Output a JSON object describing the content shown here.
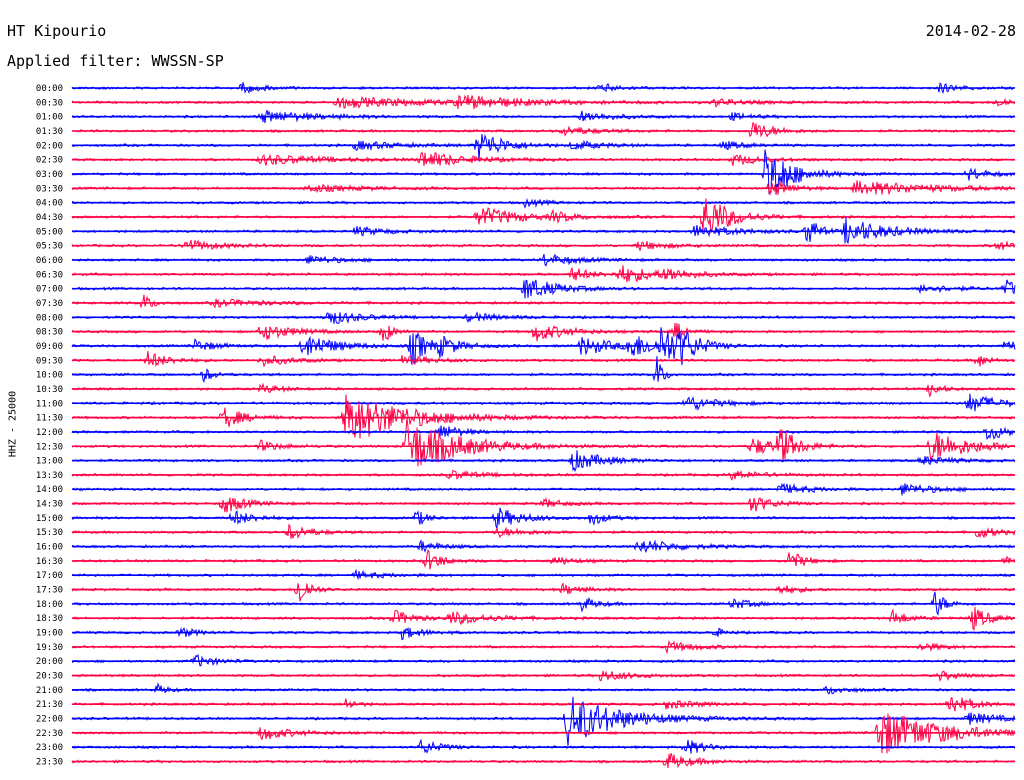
{
  "header": {
    "station": "HT Kipourio",
    "date": "2014-02-28",
    "filter": "Applied filter: WWSSN-SP"
  },
  "chart_data": {
    "type": "line",
    "chart_kind": "helicorder",
    "ylabel": "HHZ - 25000",
    "colors": [
      "#0000ff",
      "#ff0044"
    ],
    "rows": [
      {
        "time": "00:00",
        "events": [
          {
            "x": 0.18,
            "a": 0.6,
            "d": 0.02
          },
          {
            "x": 0.56,
            "a": 0.5,
            "d": 0.02
          },
          {
            "x": 0.92,
            "a": 0.5,
            "d": 0.02
          }
        ]
      },
      {
        "time": "00:30",
        "events": [
          {
            "x": 0.28,
            "a": 0.6,
            "d": 0.1
          },
          {
            "x": 0.41,
            "a": 0.7,
            "d": 0.06
          },
          {
            "x": 0.68,
            "a": 0.4,
            "d": 0.03
          },
          {
            "x": 0.98,
            "a": 0.5,
            "d": 0.02
          }
        ]
      },
      {
        "time": "01:00",
        "events": [
          {
            "x": 0.2,
            "a": 0.7,
            "d": 0.05
          },
          {
            "x": 0.54,
            "a": 0.6,
            "d": 0.03
          },
          {
            "x": 0.7,
            "a": 0.4,
            "d": 0.02
          }
        ]
      },
      {
        "time": "01:30",
        "events": [
          {
            "x": 0.52,
            "a": 0.5,
            "d": 0.03
          },
          {
            "x": 0.72,
            "a": 1.2,
            "d": 0.02
          }
        ]
      },
      {
        "time": "02:00",
        "events": [
          {
            "x": 0.3,
            "a": 0.5,
            "d": 0.04
          },
          {
            "x": 0.43,
            "a": 1.8,
            "d": 0.025
          },
          {
            "x": 0.53,
            "a": 0.5,
            "d": 0.03
          },
          {
            "x": 0.69,
            "a": 0.5,
            "d": 0.02
          }
        ]
      },
      {
        "time": "02:30",
        "events": [
          {
            "x": 0.2,
            "a": 0.6,
            "d": 0.06
          },
          {
            "x": 0.37,
            "a": 1.0,
            "d": 0.04
          },
          {
            "x": 0.7,
            "a": 0.6,
            "d": 0.03
          }
        ]
      },
      {
        "time": "03:00",
        "events": [
          {
            "x": 0.735,
            "a": 3.0,
            "d": 0.012
          },
          {
            "x": 0.745,
            "a": 1.6,
            "d": 0.03
          },
          {
            "x": 0.95,
            "a": 0.7,
            "d": 0.02
          }
        ]
      },
      {
        "time": "03:30",
        "events": [
          {
            "x": 0.74,
            "a": 1.0,
            "d": 0.02
          },
          {
            "x": 0.83,
            "a": 0.8,
            "d": 0.08
          },
          {
            "x": 0.25,
            "a": 0.4,
            "d": 0.05
          }
        ]
      },
      {
        "time": "04:00",
        "events": [
          {
            "x": 0.48,
            "a": 0.4,
            "d": 0.02
          }
        ]
      },
      {
        "time": "04:30",
        "events": [
          {
            "x": 0.43,
            "a": 1.2,
            "d": 0.04
          },
          {
            "x": 0.67,
            "a": 2.8,
            "d": 0.025
          },
          {
            "x": 0.51,
            "a": 0.5,
            "d": 0.02
          }
        ]
      },
      {
        "time": "05:00",
        "events": [
          {
            "x": 0.66,
            "a": 0.7,
            "d": 0.04
          },
          {
            "x": 0.78,
            "a": 2.0,
            "d": 0.01
          },
          {
            "x": 0.82,
            "a": 1.5,
            "d": 0.04
          },
          {
            "x": 0.3,
            "a": 0.5,
            "d": 0.03
          }
        ]
      },
      {
        "time": "05:30",
        "events": [
          {
            "x": 0.12,
            "a": 0.7,
            "d": 0.03
          },
          {
            "x": 0.6,
            "a": 0.5,
            "d": 0.03
          },
          {
            "x": 0.98,
            "a": 0.5,
            "d": 0.02
          }
        ]
      },
      {
        "time": "06:00",
        "events": [
          {
            "x": 0.25,
            "a": 0.5,
            "d": 0.03
          },
          {
            "x": 0.5,
            "a": 0.7,
            "d": 0.03
          }
        ]
      },
      {
        "time": "06:30",
        "events": [
          {
            "x": 0.53,
            "a": 0.8,
            "d": 0.02
          },
          {
            "x": 0.58,
            "a": 1.0,
            "d": 0.04
          },
          {
            "x": 0.63,
            "a": 0.6,
            "d": 0.02
          }
        ]
      },
      {
        "time": "07:00",
        "events": [
          {
            "x": 0.48,
            "a": 1.4,
            "d": 0.03
          },
          {
            "x": 0.9,
            "a": 0.5,
            "d": 0.03
          },
          {
            "x": 0.99,
            "a": 0.9,
            "d": 0.02
          }
        ]
      },
      {
        "time": "07:30",
        "events": [
          {
            "x": 0.075,
            "a": 1.0,
            "d": 0.01
          },
          {
            "x": 0.15,
            "a": 0.4,
            "d": 0.05
          }
        ]
      },
      {
        "time": "08:00",
        "events": [
          {
            "x": 0.27,
            "a": 0.9,
            "d": 0.03
          },
          {
            "x": 0.42,
            "a": 0.5,
            "d": 0.03
          }
        ]
      },
      {
        "time": "08:30",
        "events": [
          {
            "x": 0.2,
            "a": 1.0,
            "d": 0.03
          },
          {
            "x": 0.33,
            "a": 1.5,
            "d": 0.008
          },
          {
            "x": 0.49,
            "a": 1.1,
            "d": 0.03
          },
          {
            "x": 0.64,
            "a": 1.2,
            "d": 0.01
          }
        ]
      },
      {
        "time": "09:00",
        "events": [
          {
            "x": 0.13,
            "a": 0.7,
            "d": 0.02
          },
          {
            "x": 0.245,
            "a": 1.5,
            "d": 0.03
          },
          {
            "x": 0.36,
            "a": 2.3,
            "d": 0.015
          },
          {
            "x": 0.39,
            "a": 1.0,
            "d": 0.02
          },
          {
            "x": 0.54,
            "a": 1.1,
            "d": 0.03
          },
          {
            "x": 0.59,
            "a": 1.4,
            "d": 0.03
          },
          {
            "x": 0.625,
            "a": 2.5,
            "d": 0.015
          },
          {
            "x": 0.645,
            "a": 1.5,
            "d": 0.02
          },
          {
            "x": 0.99,
            "a": 0.9,
            "d": 0.01
          }
        ]
      },
      {
        "time": "09:30",
        "events": [
          {
            "x": 0.08,
            "a": 1.0,
            "d": 0.02
          },
          {
            "x": 0.2,
            "a": 0.6,
            "d": 0.03
          },
          {
            "x": 0.35,
            "a": 0.5,
            "d": 0.03
          },
          {
            "x": 0.96,
            "a": 0.9,
            "d": 0.01
          }
        ]
      },
      {
        "time": "10:00",
        "events": [
          {
            "x": 0.14,
            "a": 0.8,
            "d": 0.01
          },
          {
            "x": 0.62,
            "a": 2.2,
            "d": 0.006
          }
        ]
      },
      {
        "time": "10:30",
        "events": [
          {
            "x": 0.2,
            "a": 0.5,
            "d": 0.02
          },
          {
            "x": 0.91,
            "a": 1.0,
            "d": 0.01
          }
        ]
      },
      {
        "time": "11:00",
        "events": [
          {
            "x": 0.65,
            "a": 0.9,
            "d": 0.03
          },
          {
            "x": 0.95,
            "a": 1.1,
            "d": 0.03
          }
        ]
      },
      {
        "time": "11:30",
        "events": [
          {
            "x": 0.16,
            "a": 1.3,
            "d": 0.02
          },
          {
            "x": 0.29,
            "a": 3.0,
            "d": 0.06
          }
        ]
      },
      {
        "time": "12:00",
        "events": [
          {
            "x": 0.39,
            "a": 0.9,
            "d": 0.02
          },
          {
            "x": 0.97,
            "a": 1.0,
            "d": 0.02
          }
        ]
      },
      {
        "time": "12:30",
        "events": [
          {
            "x": 0.355,
            "a": 3.2,
            "d": 0.05
          },
          {
            "x": 0.2,
            "a": 0.6,
            "d": 0.02
          },
          {
            "x": 0.72,
            "a": 1.0,
            "d": 0.03
          },
          {
            "x": 0.75,
            "a": 2.2,
            "d": 0.015
          },
          {
            "x": 0.91,
            "a": 1.8,
            "d": 0.04
          }
        ]
      },
      {
        "time": "13:00",
        "events": [
          {
            "x": 0.53,
            "a": 1.2,
            "d": 0.03
          },
          {
            "x": 0.9,
            "a": 0.5,
            "d": 0.03
          }
        ]
      },
      {
        "time": "13:30",
        "events": [
          {
            "x": 0.4,
            "a": 0.5,
            "d": 0.03
          },
          {
            "x": 0.7,
            "a": 0.5,
            "d": 0.03
          }
        ]
      },
      {
        "time": "14:00",
        "events": [
          {
            "x": 0.75,
            "a": 0.6,
            "d": 0.03
          },
          {
            "x": 0.88,
            "a": 0.7,
            "d": 0.03
          }
        ]
      },
      {
        "time": "14:30",
        "events": [
          {
            "x": 0.16,
            "a": 1.2,
            "d": 0.02
          },
          {
            "x": 0.72,
            "a": 1.0,
            "d": 0.02
          },
          {
            "x": 0.5,
            "a": 0.5,
            "d": 0.02
          }
        ]
      },
      {
        "time": "15:00",
        "events": [
          {
            "x": 0.17,
            "a": 0.9,
            "d": 0.02
          },
          {
            "x": 0.365,
            "a": 1.0,
            "d": 0.01
          },
          {
            "x": 0.45,
            "a": 1.2,
            "d": 0.025
          },
          {
            "x": 0.55,
            "a": 0.8,
            "d": 0.015
          }
        ]
      },
      {
        "time": "15:30",
        "events": [
          {
            "x": 0.23,
            "a": 0.9,
            "d": 0.02
          },
          {
            "x": 0.45,
            "a": 0.5,
            "d": 0.03
          },
          {
            "x": 0.96,
            "a": 0.7,
            "d": 0.02
          }
        ]
      },
      {
        "time": "16:00",
        "events": [
          {
            "x": 0.37,
            "a": 0.6,
            "d": 0.02
          },
          {
            "x": 0.6,
            "a": 0.8,
            "d": 0.04
          }
        ]
      },
      {
        "time": "16:30",
        "events": [
          {
            "x": 0.375,
            "a": 1.3,
            "d": 0.015
          },
          {
            "x": 0.76,
            "a": 1.2,
            "d": 0.015
          },
          {
            "x": 0.51,
            "a": 0.5,
            "d": 0.02
          },
          {
            "x": 0.99,
            "a": 0.7,
            "d": 0.01
          }
        ]
      },
      {
        "time": "17:00",
        "events": [
          {
            "x": 0.3,
            "a": 0.4,
            "d": 0.03
          }
        ]
      },
      {
        "time": "17:30",
        "events": [
          {
            "x": 0.24,
            "a": 2.2,
            "d": 0.01
          },
          {
            "x": 0.52,
            "a": 0.6,
            "d": 0.02
          },
          {
            "x": 0.75,
            "a": 0.5,
            "d": 0.02
          }
        ]
      },
      {
        "time": "18:00",
        "events": [
          {
            "x": 0.54,
            "a": 0.8,
            "d": 0.015
          },
          {
            "x": 0.915,
            "a": 1.6,
            "d": 0.01
          },
          {
            "x": 0.7,
            "a": 0.6,
            "d": 0.02
          }
        ]
      },
      {
        "time": "18:30",
        "events": [
          {
            "x": 0.34,
            "a": 0.9,
            "d": 0.02
          },
          {
            "x": 0.4,
            "a": 0.7,
            "d": 0.04
          },
          {
            "x": 0.87,
            "a": 0.9,
            "d": 0.015
          },
          {
            "x": 0.955,
            "a": 1.4,
            "d": 0.015
          }
        ]
      },
      {
        "time": "19:00",
        "events": [
          {
            "x": 0.115,
            "a": 0.6,
            "d": 0.015
          },
          {
            "x": 0.35,
            "a": 0.7,
            "d": 0.02
          },
          {
            "x": 0.68,
            "a": 0.6,
            "d": 0.01
          }
        ]
      },
      {
        "time": "19:30",
        "events": [
          {
            "x": 0.63,
            "a": 0.6,
            "d": 0.03
          },
          {
            "x": 0.9,
            "a": 0.5,
            "d": 0.02
          }
        ]
      },
      {
        "time": "20:00",
        "events": [
          {
            "x": 0.13,
            "a": 0.7,
            "d": 0.02
          }
        ]
      },
      {
        "time": "20:30",
        "events": [
          {
            "x": 0.56,
            "a": 0.6,
            "d": 0.03
          },
          {
            "x": 0.92,
            "a": 0.5,
            "d": 0.02
          }
        ]
      },
      {
        "time": "21:00",
        "events": [
          {
            "x": 0.09,
            "a": 0.6,
            "d": 0.01
          },
          {
            "x": 0.8,
            "a": 0.5,
            "d": 0.02
          }
        ]
      },
      {
        "time": "21:30",
        "events": [
          {
            "x": 0.29,
            "a": 0.7,
            "d": 0.01
          },
          {
            "x": 0.63,
            "a": 0.5,
            "d": 0.03
          },
          {
            "x": 0.93,
            "a": 1.3,
            "d": 0.02
          }
        ]
      },
      {
        "time": "22:00",
        "events": [
          {
            "x": 0.525,
            "a": 3.0,
            "d": 0.05
          },
          {
            "x": 0.95,
            "a": 0.7,
            "d": 0.03
          }
        ]
      },
      {
        "time": "22:30",
        "events": [
          {
            "x": 0.2,
            "a": 0.8,
            "d": 0.03
          },
          {
            "x": 0.855,
            "a": 2.8,
            "d": 0.06
          }
        ]
      },
      {
        "time": "23:00",
        "events": [
          {
            "x": 0.37,
            "a": 0.8,
            "d": 0.02
          },
          {
            "x": 0.65,
            "a": 0.9,
            "d": 0.02
          }
        ]
      },
      {
        "time": "23:30",
        "events": [
          {
            "x": 0.63,
            "a": 1.0,
            "d": 0.025
          }
        ]
      }
    ]
  }
}
